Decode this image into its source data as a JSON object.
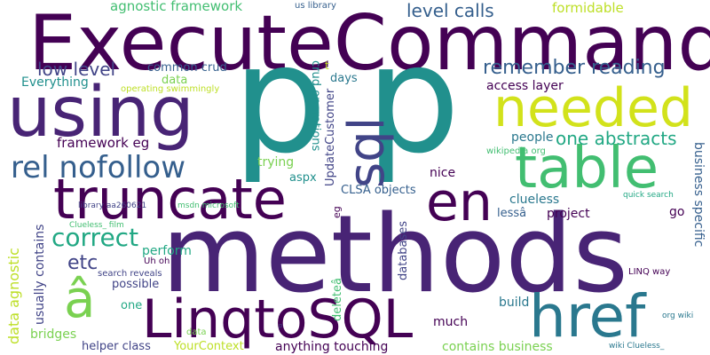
{
  "words": [
    {
      "text": "ExecuteCommand",
      "color": "#440154"
    },
    {
      "text": "p",
      "color": "#21908d"
    },
    {
      "text": "p",
      "color": "#21908d"
    },
    {
      "text": "methods",
      "color": "#482475"
    },
    {
      "text": "using",
      "color": "#482475"
    },
    {
      "text": "truncate",
      "color": "#440154"
    },
    {
      "text": "LinqtoSQL",
      "color": "#440154"
    },
    {
      "text": "table",
      "color": "#42be71"
    },
    {
      "text": "needed",
      "color": "#d2e21b"
    },
    {
      "text": "href",
      "color": "#2a788e"
    },
    {
      "text": "sql",
      "color": "#414487"
    },
    {
      "text": "en",
      "color": "#440154"
    },
    {
      "text": "rel nofollow",
      "color": "#355f8d"
    },
    {
      "text": "â",
      "color": "#7ad151"
    },
    {
      "text": "correct",
      "color": "#22a884"
    },
    {
      "text": "etc",
      "color": "#414487"
    },
    {
      "text": "remember reading",
      "color": "#355f8d"
    },
    {
      "text": "one abstracts",
      "color": "#22a884"
    },
    {
      "text": "level calls",
      "color": "#355f8d"
    },
    {
      "text": "low level",
      "color": "#414487"
    },
    {
      "text": "agnostic framework",
      "color": "#42be71"
    },
    {
      "text": "formidable",
      "color": "#bddf26"
    },
    {
      "text": "us library",
      "color": "#355f8d"
    },
    {
      "text": "common crud",
      "color": "#355f8d"
    },
    {
      "text": "Everything",
      "color": "#21908d"
    },
    {
      "text": "data",
      "color": "#7ad151"
    },
    {
      "text": "operating swimmingly",
      "color": "#bddf26"
    },
    {
      "text": "days",
      "color": "#2a788e"
    },
    {
      "text": "access layer",
      "color": "#440154"
    },
    {
      "text": "framework eg",
      "color": "#440154"
    },
    {
      "text": "people",
      "color": "#2a788e"
    },
    {
      "text": "wikipedia org",
      "color": "#42be71"
    },
    {
      "text": "trying",
      "color": "#7ad151"
    },
    {
      "text": "aspx",
      "color": "#21908d"
    },
    {
      "text": "nice",
      "color": "#440154"
    },
    {
      "text": "CLSA objects",
      "color": "#355f8d"
    },
    {
      "text": "clueless",
      "color": "#2a788e"
    },
    {
      "text": "quick search",
      "color": "#22a884"
    },
    {
      "text": "lessâ",
      "color": "#355f8d"
    },
    {
      "text": "project",
      "color": "#440154"
    },
    {
      "text": "go",
      "color": "#440154"
    },
    {
      "text": "library aa260621",
      "color": "#414487"
    },
    {
      "text": "msdn microsoft",
      "color": "#42be71"
    },
    {
      "text": "Clueless_ film",
      "color": "#42be71"
    },
    {
      "text": "perform",
      "color": "#22a884"
    },
    {
      "text": "Uh oh",
      "color": "#440154"
    },
    {
      "text": "search reveals",
      "color": "#414487"
    },
    {
      "text": "possible",
      "color": "#414487"
    },
    {
      "text": "LINQ way",
      "color": "#440154"
    },
    {
      "text": "one",
      "color": "#22a884"
    },
    {
      "text": "build",
      "color": "#2a788e"
    },
    {
      "text": "much",
      "color": "#440154"
    },
    {
      "text": "org wiki",
      "color": "#2a788e"
    },
    {
      "text": "bridges",
      "color": "#7ad151"
    },
    {
      "text": "helper class",
      "color": "#414487"
    },
    {
      "text": "YourContext",
      "color": "#bddf26"
    },
    {
      "text": "anything touching",
      "color": "#440154"
    },
    {
      "text": "contains business",
      "color": "#7ad151"
    },
    {
      "text": "wiki Clueless_",
      "color": "#2a788e"
    },
    {
      "text": "crud operations",
      "color": "#21908d"
    },
    {
      "text": "UpdateCustomer",
      "color": "#414487"
    },
    {
      "text": "eg",
      "color": "#440154"
    },
    {
      "text": "t",
      "color": "#bddf26"
    },
    {
      "text": "deleteâ",
      "color": "#42be71"
    },
    {
      "text": "databases",
      "color": "#414487"
    },
    {
      "text": "business specific",
      "color": "#355f8d"
    },
    {
      "text": "usually contains",
      "color": "#414487"
    },
    {
      "text": "data agnostic",
      "color": "#bddf26"
    },
    {
      "text": "p",
      "color": "#414487"
    }
  ]
}
